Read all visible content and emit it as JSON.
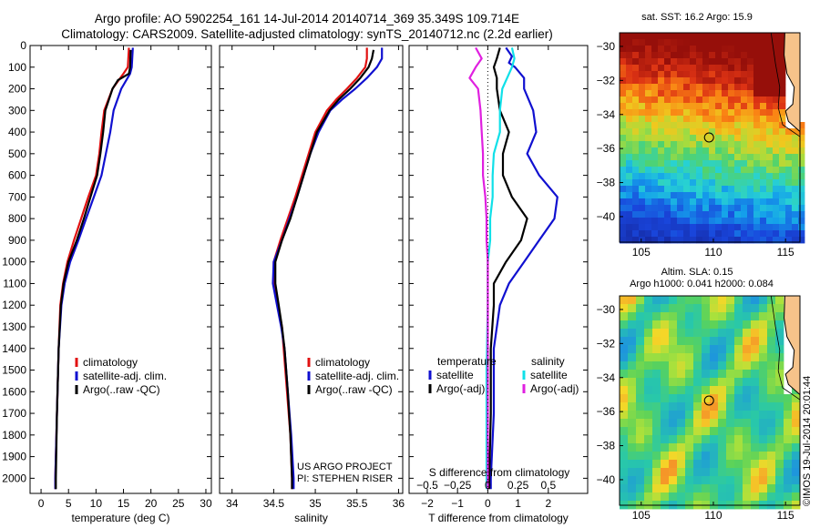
{
  "title": {
    "line1": "Argo profile: AO 5902254_161 14-Jul-2014 20140714_369 35.349S 109.714E",
    "line2": "Climatology: CARS2009. Satellite-adjusted climatology: synTS_20140712.nc (2.2d earlier)"
  },
  "colors": {
    "climatology": "#e11111",
    "satellite": "#1010d0",
    "argo": "#000000",
    "sat_salinity": "#10e0e8",
    "argo_salinity": "#e020e0"
  },
  "chart_data": [
    {
      "type": "line",
      "name": "temperature",
      "xlabel": "temperature (deg C)",
      "xlim": [
        -2,
        31
      ],
      "ylim": [
        2070,
        0
      ],
      "xticks": [
        0,
        5,
        10,
        15,
        20,
        25,
        30
      ],
      "yticks": [
        0,
        100,
        200,
        300,
        400,
        500,
        600,
        700,
        800,
        900,
        1000,
        1100,
        1200,
        1300,
        1400,
        1500,
        1600,
        1700,
        1800,
        1900,
        2000
      ],
      "legend": [
        "climatology",
        "satellite-adj. clim.",
        "Argo(..raw -QC)"
      ],
      "series": [
        {
          "name": "climatology",
          "color": "#e11111",
          "depth": [
            10,
            100,
            130,
            200,
            300,
            400,
            500,
            600,
            700,
            800,
            900,
            1000,
            1100,
            1200,
            1400,
            1700,
            2000,
            2050
          ],
          "values": [
            16.0,
            15.8,
            15.0,
            13.0,
            11.5,
            11.0,
            10.6,
            10.0,
            8.6,
            7.3,
            6.0,
            4.8,
            4.0,
            3.5,
            3.2,
            2.9,
            2.6,
            2.6
          ]
        },
        {
          "name": "satellite-adj. clim.",
          "color": "#1010d0",
          "depth": [
            10,
            100,
            130,
            200,
            300,
            400,
            500,
            600,
            700,
            800,
            900,
            1000,
            1100,
            1200,
            1400,
            1700,
            2000,
            2050
          ],
          "values": [
            16.7,
            16.5,
            16.2,
            14.6,
            13.2,
            12.6,
            11.8,
            11.0,
            9.6,
            8.2,
            6.8,
            5.3,
            4.3,
            3.7,
            3.2,
            2.9,
            2.6,
            2.6
          ]
        },
        {
          "name": "Argo(..raw -QC)",
          "color": "#000000",
          "depth": [
            20,
            100,
            130,
            160,
            200,
            300,
            400,
            500,
            600,
            700,
            800,
            900,
            1000,
            1100,
            1200,
            1400,
            1700,
            2000,
            2050
          ],
          "values": [
            16.3,
            16.2,
            16.0,
            14.0,
            13.0,
            11.7,
            11.3,
            10.8,
            10.2,
            9.0,
            7.8,
            6.5,
            5.0,
            4.1,
            3.6,
            3.2,
            2.9,
            2.7,
            2.7
          ]
        }
      ]
    },
    {
      "type": "line",
      "name": "salinity",
      "xlabel": "salinity",
      "xlim": [
        33.85,
        36.05
      ],
      "ylim": [
        2070,
        0
      ],
      "xticks": [
        34,
        34.5,
        35,
        35.5,
        36
      ],
      "legend": [
        "climatology",
        "satellite-adj. clim.",
        "Argo(..raw -QC)"
      ],
      "annotation": [
        "US ARGO PROJECT",
        "PI: STEPHEN RISER"
      ],
      "series": [
        {
          "name": "climatology",
          "color": "#e11111",
          "depth": [
            10,
            60,
            100,
            150,
            200,
            250,
            300,
            400,
            500,
            600,
            700,
            800,
            900,
            1000,
            1100,
            1200,
            1300,
            1400,
            1600,
            1800,
            2000,
            2050
          ],
          "values": [
            35.62,
            35.62,
            35.6,
            35.5,
            35.38,
            35.25,
            35.14,
            35.0,
            34.92,
            34.84,
            34.76,
            34.67,
            34.58,
            34.5,
            34.5,
            34.55,
            34.6,
            34.62,
            34.66,
            34.7,
            34.72,
            34.72
          ]
        },
        {
          "name": "satellite-adj. clim.",
          "color": "#1010d0",
          "depth": [
            10,
            60,
            100,
            150,
            200,
            250,
            300,
            400,
            500,
            600,
            700,
            800,
            900,
            1000,
            1100,
            1200,
            1300,
            1400,
            1600,
            1800,
            2000,
            2050
          ],
          "values": [
            35.8,
            35.8,
            35.74,
            35.62,
            35.48,
            35.32,
            35.18,
            35.04,
            34.94,
            34.86,
            34.78,
            34.69,
            34.6,
            34.5,
            34.49,
            34.54,
            34.59,
            34.63,
            34.67,
            34.71,
            34.74,
            34.74
          ]
        },
        {
          "name": "Argo(..raw -QC)",
          "color": "#000000",
          "depth": [
            20,
            60,
            100,
            150,
            200,
            250,
            300,
            400,
            500,
            600,
            700,
            800,
            900,
            1000,
            1100,
            1200,
            1300,
            1400,
            1600,
            1800,
            2000,
            2050
          ],
          "values": [
            35.7,
            35.68,
            35.64,
            35.54,
            35.42,
            35.28,
            35.17,
            35.02,
            34.94,
            34.86,
            34.78,
            34.7,
            34.6,
            34.52,
            34.52,
            34.56,
            34.6,
            34.63,
            34.67,
            34.7,
            34.72,
            34.72
          ]
        }
      ]
    },
    {
      "type": "line",
      "name": "difference",
      "xlabel": "T difference from climatology",
      "x2label": "S difference from climatology",
      "xlim": [
        -2.6,
        3.3
      ],
      "ylim": [
        2070,
        0
      ],
      "xticks": [
        -2,
        -1,
        0,
        1,
        2
      ],
      "x2ticks": [
        -0.5,
        -0.25,
        0,
        0.25,
        0.5
      ],
      "legend_titles": [
        "temperature",
        "salinity"
      ],
      "legend": [
        "satellite",
        "Argo(-adj)",
        "satellite",
        "Argo(-adj)"
      ],
      "series": [
        {
          "name": "satellite",
          "group": "temperature",
          "color": "#1010d0",
          "depth": [
            10,
            50,
            80,
            100,
            150,
            200,
            300,
            400,
            500,
            600,
            700,
            800,
            900,
            1000,
            1100,
            1200,
            1400,
            1700,
            2000,
            2050
          ],
          "values": [
            0.6,
            0.8,
            0.7,
            0.9,
            1.2,
            1.2,
            1.5,
            1.6,
            1.3,
            1.7,
            2.3,
            2.2,
            1.7,
            1.2,
            0.7,
            0.4,
            0.2,
            0.2,
            0.1,
            0.1
          ]
        },
        {
          "name": "Argo(-adj)",
          "group": "temperature",
          "color": "#000000",
          "depth": [
            10,
            60,
            100,
            150,
            200,
            300,
            400,
            500,
            600,
            700,
            800,
            900,
            1000,
            1100,
            1200,
            1400,
            1700,
            2000,
            2050
          ],
          "values": [
            0.4,
            0.3,
            0.2,
            0.3,
            0.3,
            0.4,
            0.7,
            0.5,
            0.5,
            0.8,
            1.3,
            1.1,
            0.6,
            0.2,
            0.2,
            0.1,
            0.1,
            0.05,
            0.05
          ]
        },
        {
          "name": "satellite",
          "group": "salinity",
          "color": "#10e0e8",
          "depth": [
            10,
            60,
            100,
            200,
            300,
            400,
            500,
            600,
            700,
            800,
            900,
            1000,
            1200,
            1500,
            1800,
            2050
          ],
          "values": [
            0.2,
            0.22,
            0.2,
            0.12,
            0.1,
            0.1,
            0.05,
            0.04,
            0.04,
            0.02,
            0.02,
            0.0,
            0.0,
            -0.01,
            -0.01,
            -0.01
          ]
        },
        {
          "name": "Argo(-adj)",
          "group": "salinity",
          "color": "#e020e0",
          "depth": [
            10,
            60,
            100,
            150,
            200,
            300,
            400,
            500,
            600,
            700,
            800,
            900,
            1000,
            1200,
            1500,
            1800,
            2050
          ],
          "values": [
            -0.1,
            -0.05,
            -0.1,
            -0.15,
            -0.08,
            -0.06,
            -0.05,
            -0.04,
            -0.04,
            -0.02,
            -0.01,
            -0.01,
            0.0,
            0.0,
            0.0,
            0.0,
            0.0
          ]
        }
      ]
    },
    {
      "type": "heatmap",
      "name": "sst-map",
      "title": "sat. SST: 16.2 Argo: 15.9",
      "xlim": [
        103.5,
        116
      ],
      "ylim": [
        -41.5,
        -29.2
      ],
      "xticks": [
        105,
        110,
        115
      ],
      "yticks": [
        -30,
        -32,
        -34,
        -36,
        -38,
        -40
      ],
      "float_position": [
        109.7,
        -35.35
      ]
    },
    {
      "type": "heatmap",
      "name": "sla-map",
      "title": "Altim. SLA: 0.15",
      "subtitle": "Argo h1000: 0.041 h2000: 0.084",
      "xlim": [
        103.5,
        116
      ],
      "ylim": [
        -41.5,
        -29.2
      ],
      "xticks": [
        105,
        110,
        115
      ],
      "yticks": [
        -30,
        -32,
        -34,
        -36,
        -38,
        -40
      ],
      "float_position": [
        109.7,
        -35.35
      ]
    }
  ],
  "stamp": "©IMOS 19-Jul-2014 20:01:44"
}
